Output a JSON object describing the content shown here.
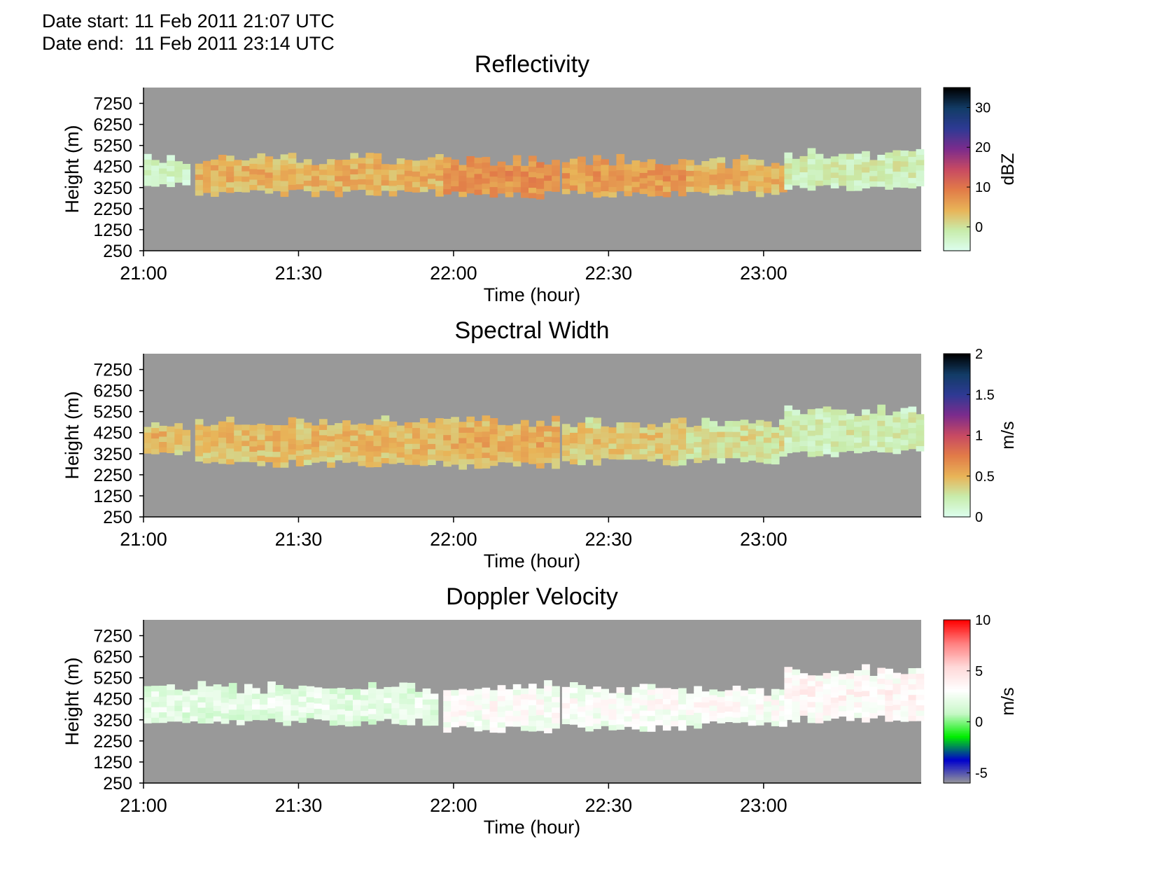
{
  "header": {
    "date_start": "Date start: 11 Feb 2011 21:07 UTC",
    "date_end": "Date end:  11 Feb 2011 23:14 UTC"
  },
  "chart_data": [
    {
      "type": "heatmap",
      "title": "Reflectivity",
      "xlabel": "Time (hour)",
      "ylabel": "Height (m)",
      "xticks": [
        "21:00",
        "21:30",
        "22:00",
        "22:30",
        "23:00"
      ],
      "xlim_minutes_after_2100": [
        0,
        150.5
      ],
      "yticks": [
        7250,
        6250,
        5250,
        4250,
        3250,
        2250,
        1250,
        250
      ],
      "ylim": [
        250,
        8000
      ],
      "no_data_color": "#999999",
      "colorbar": {
        "label": "dBZ",
        "ticks": [
          30,
          20,
          10,
          0
        ],
        "range": [
          -6,
          35
        ],
        "colors": [
          "#ddfff0",
          "#c8ecac",
          "#e8b458",
          "#e27c48",
          "#c84a62",
          "#7c2c8c",
          "#2e3a94",
          "#123c66",
          "#000000"
        ]
      },
      "series": [
        {
          "time_range": [
            "21:00",
            "21:08"
          ],
          "base_m": 3450,
          "top_m": 4500,
          "value_dbZ": -4
        },
        {
          "time_range": [
            "21:10",
            "21:57"
          ],
          "base_m": 3000,
          "top_m": 4500,
          "value_dbZ": 3
        },
        {
          "time_range": [
            "21:58",
            "22:20"
          ],
          "base_m": 2900,
          "top_m": 4450,
          "value_dbZ": 6
        },
        {
          "time_range": [
            "22:21",
            "22:45"
          ],
          "base_m": 2950,
          "top_m": 4400,
          "value_dbZ": 5
        },
        {
          "time_range": [
            "22:45",
            "23:04"
          ],
          "base_m": 3000,
          "top_m": 4350,
          "value_dbZ": 3
        },
        {
          "time_range": [
            "23:04",
            "23:30"
          ],
          "base_m": 3300,
          "top_m": 4750,
          "value_dbZ": -3
        }
      ]
    },
    {
      "type": "heatmap",
      "title": "Spectral Width",
      "xlabel": "Time (hour)",
      "ylabel": "Height (m)",
      "xticks": [
        "21:00",
        "21:30",
        "22:00",
        "22:30",
        "23:00"
      ],
      "xlim_minutes_after_2100": [
        0,
        150.5
      ],
      "yticks": [
        7250,
        6250,
        5250,
        4250,
        3250,
        2250,
        1250,
        250
      ],
      "ylim": [
        250,
        8000
      ],
      "no_data_color": "#999999",
      "colorbar": {
        "label": "m/s",
        "ticks": [
          2,
          1.5,
          1,
          0.5,
          0
        ],
        "range": [
          0,
          2
        ],
        "colors": [
          "#ddfff0",
          "#c8ecac",
          "#e8b458",
          "#e27c48",
          "#c84a62",
          "#7c2c8c",
          "#2e3a94",
          "#123c66",
          "#000000"
        ]
      },
      "series": [
        {
          "time_range": [
            "21:00",
            "21:08"
          ],
          "base_m": 3350,
          "top_m": 4550,
          "value_ms": 0.4
        },
        {
          "time_range": [
            "21:10",
            "21:57"
          ],
          "base_m": 2800,
          "top_m": 4650,
          "value_ms": 0.4
        },
        {
          "time_range": [
            "21:58",
            "22:20"
          ],
          "base_m": 2700,
          "top_m": 4650,
          "value_ms": 0.45
        },
        {
          "time_range": [
            "22:21",
            "22:45"
          ],
          "base_m": 2850,
          "top_m": 4600,
          "value_ms": 0.35
        },
        {
          "time_range": [
            "22:45",
            "23:04"
          ],
          "base_m": 2950,
          "top_m": 4600,
          "value_ms": 0.25
        },
        {
          "time_range": [
            "23:04",
            "23:30"
          ],
          "base_m": 3300,
          "top_m": 5200,
          "value_ms": 0.15
        }
      ]
    },
    {
      "type": "heatmap",
      "title": "Doppler Velocity",
      "xlabel": "Time (hour)",
      "ylabel": "Height (m)",
      "xticks": [
        "21:00",
        "21:30",
        "22:00",
        "22:30",
        "23:00"
      ],
      "xlim_minutes_after_2100": [
        0,
        150.5
      ],
      "yticks": [
        7250,
        6250,
        5250,
        4250,
        3250,
        2250,
        1250,
        250
      ],
      "ylim": [
        250,
        8000
      ],
      "no_data_color": "#999999",
      "colorbar": {
        "label": "m/s",
        "ticks": [
          10,
          5,
          0,
          -5
        ],
        "range": [
          -6,
          10
        ],
        "colors": [
          "#999999",
          "#0000cc",
          "#00ee00",
          "#c8f8c8",
          "#ffffff",
          "#ffd8d8",
          "#ff8080",
          "#ff0000"
        ]
      },
      "series": [
        {
          "time_range": [
            "21:00",
            "21:57"
          ],
          "base_m": 3150,
          "top_m": 4700,
          "value_ms": 1.5
        },
        {
          "time_range": [
            "21:58",
            "22:20"
          ],
          "base_m": 2800,
          "top_m": 4650,
          "value_ms": 2.5
        },
        {
          "time_range": [
            "22:21",
            "22:45"
          ],
          "base_m": 2900,
          "top_m": 4600,
          "value_ms": 2.5
        },
        {
          "time_range": [
            "22:45",
            "23:04"
          ],
          "base_m": 3000,
          "top_m": 4600,
          "value_ms": 2.5
        },
        {
          "time_range": [
            "23:04",
            "23:30"
          ],
          "base_m": 3300,
          "top_m": 5400,
          "value_ms": 3
        }
      ]
    }
  ]
}
